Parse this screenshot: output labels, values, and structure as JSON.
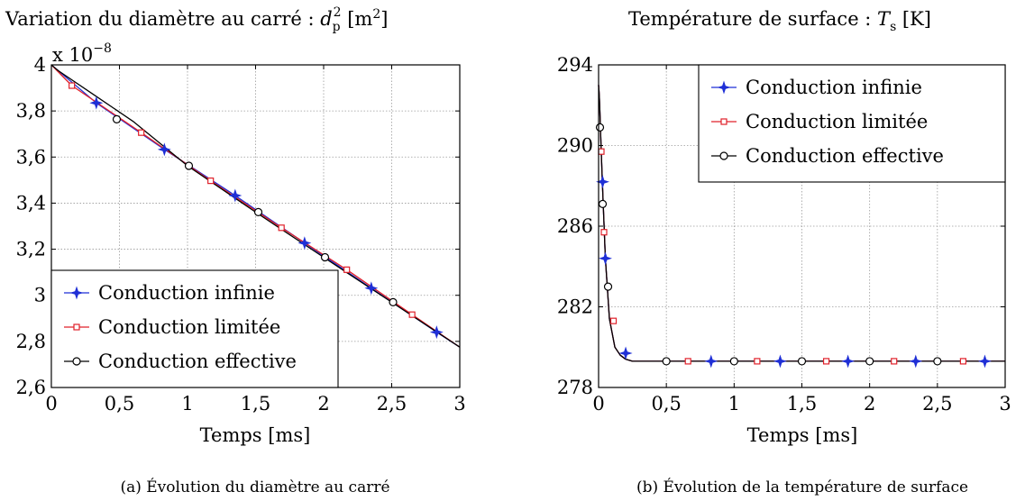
{
  "chart_data": [
    {
      "type": "line",
      "title": "Variation du diamètre au carré : d_p² [m²]",
      "title_parts": {
        "main": "Variation du diamètre au carré : ",
        "sym": "d",
        "sub": "p",
        "sup": "2",
        "unit_open": " [m",
        "unit_sup": "2",
        "unit_close": "]"
      },
      "multiplier": {
        "base": "x 10",
        "exp": "−8"
      },
      "xlabel": "Temps [ms]",
      "caption": "(a) Évolution du diamètre au carré",
      "xlim": [
        0,
        3
      ],
      "ylim": [
        2.6,
        4.0
      ],
      "xticks": [
        0,
        0.5,
        1,
        1.5,
        2,
        2.5,
        3
      ],
      "xtick_labels": [
        "0",
        "0,5",
        "1",
        "1,5",
        "2",
        "2,5",
        "3"
      ],
      "yticks": [
        2.6,
        2.8,
        3.0,
        3.2,
        3.4,
        3.6,
        3.8,
        4.0
      ],
      "ytick_labels": [
        "2,6",
        "2,8",
        "3",
        "3,2",
        "3,4",
        "3,6",
        "3,8",
        "4"
      ],
      "grid": true,
      "legend_position": "bottom-left",
      "series": [
        {
          "name": "Conduction infinie",
          "marker": "star",
          "color": "#1f2fd6",
          "x": [
            0,
            0.33,
            0.83,
            1.35,
            1.86,
            2.35,
            2.83,
            3.0
          ],
          "y": [
            4.0,
            3.835,
            3.633,
            3.433,
            3.227,
            3.031,
            2.84,
            2.775
          ],
          "markers_x": [
            0.33,
            0.83,
            1.35,
            1.86,
            2.35,
            2.83
          ],
          "markers_y": [
            3.835,
            3.633,
            3.433,
            3.227,
            3.031,
            2.84
          ]
        },
        {
          "name": "Conduction limitée",
          "marker": "square",
          "color": "#e0202a",
          "x": [
            0,
            0.15,
            0.66,
            1.17,
            1.69,
            2.17,
            2.65,
            3.0
          ],
          "y": [
            4.0,
            3.91,
            3.706,
            3.497,
            3.293,
            3.111,
            2.916,
            2.775
          ],
          "markers_x": [
            0.15,
            0.66,
            1.17,
            1.69,
            2.17,
            2.65
          ],
          "markers_y": [
            3.91,
            3.706,
            3.497,
            3.293,
            3.111,
            2.916
          ]
        },
        {
          "name": "Conduction effective",
          "marker": "circle",
          "color": "#000000",
          "x": [
            0,
            0.02,
            0.05,
            0.1,
            0.3,
            0.6,
            1.0,
            1.5,
            2.0,
            2.5,
            3.0
          ],
          "y": [
            4.0,
            3.99,
            3.975,
            3.955,
            3.875,
            3.755,
            3.562,
            3.361,
            3.165,
            2.97,
            2.775
          ],
          "markers_x": [
            0.48,
            1.01,
            1.52,
            2.01,
            2.51
          ],
          "markers_y": [
            3.764,
            3.562,
            3.361,
            3.165,
            2.97
          ]
        }
      ]
    },
    {
      "type": "line",
      "title": "Température de surface : T_s [K]",
      "title_parts": {
        "main": "Température de surface : ",
        "sym": "T",
        "sub": "s",
        "unit": " [K]"
      },
      "xlabel": "Temps [ms]",
      "caption": "(b) Évolution de la température de surface",
      "xlim": [
        0,
        3
      ],
      "ylim": [
        278,
        294
      ],
      "xticks": [
        0,
        0.5,
        1,
        1.5,
        2,
        2.5,
        3
      ],
      "xtick_labels": [
        "0",
        "0,5",
        "1",
        "1,5",
        "2",
        "2,5",
        "3"
      ],
      "yticks": [
        278,
        282,
        286,
        290,
        294
      ],
      "ytick_labels": [
        "278",
        "282",
        "286",
        "290",
        "294"
      ],
      "grid": true,
      "legend_position": "top-right",
      "series": [
        {
          "name": "Conduction infinie",
          "marker": "star",
          "color": "#1f2fd6",
          "x": [
            0,
            0.005,
            0.01,
            0.02,
            0.03,
            0.05,
            0.08,
            0.12,
            0.16,
            0.2,
            0.25,
            0.3,
            0.4,
            0.5,
            0.7,
            1.0,
            2.0,
            3.0
          ],
          "y": [
            293,
            292.5,
            291.6,
            289.6,
            287.8,
            284.4,
            281.4,
            280.0,
            279.6,
            279.4,
            279.3,
            279.3,
            279.3,
            279.3,
            279.3,
            279.3,
            279.3,
            279.3
          ],
          "markers_x": [
            0.03,
            0.05,
            0.2,
            0.83,
            1.34,
            1.84,
            2.34,
            2.85
          ],
          "markers_y": [
            288.2,
            284.4,
            279.7,
            279.3,
            279.3,
            279.3,
            279.3,
            279.3
          ]
        },
        {
          "name": "Conduction limitée",
          "marker": "square",
          "color": "#e0202a",
          "x": [
            0,
            0.005,
            0.01,
            0.02,
            0.03,
            0.05,
            0.08,
            0.12,
            0.16,
            0.2,
            0.25,
            0.3,
            0.4,
            0.5,
            0.7,
            1.0,
            2.0,
            3.0
          ],
          "y": [
            293,
            292.5,
            291.6,
            289.6,
            287.8,
            284.4,
            281.4,
            280.0,
            279.6,
            279.4,
            279.3,
            279.3,
            279.3,
            279.3,
            279.3,
            279.3,
            279.3,
            279.3
          ],
          "markers_x": [
            0.02,
            0.04,
            0.11,
            0.66,
            1.17,
            1.68,
            2.18,
            2.69
          ],
          "markers_y": [
            289.7,
            285.7,
            281.3,
            279.3,
            279.3,
            279.3,
            279.3,
            279.3
          ]
        },
        {
          "name": "Conduction effective",
          "marker": "circle",
          "color": "#000000",
          "x": [
            0,
            0.005,
            0.01,
            0.02,
            0.03,
            0.05,
            0.08,
            0.12,
            0.16,
            0.2,
            0.25,
            0.3,
            0.4,
            0.5,
            0.7,
            1.0,
            2.0,
            3.0
          ],
          "y": [
            293,
            292.5,
            291.6,
            289.6,
            287.8,
            284.4,
            281.4,
            280.0,
            279.6,
            279.4,
            279.3,
            279.3,
            279.3,
            279.3,
            279.3,
            279.3,
            279.3,
            279.3
          ],
          "markers_x": [
            0.01,
            0.03,
            0.07,
            0.5,
            1.0,
            1.5,
            2.0,
            2.5
          ],
          "markers_y": [
            290.9,
            287.1,
            283.0,
            279.3,
            279.3,
            279.3,
            279.3,
            279.3
          ]
        }
      ]
    }
  ]
}
